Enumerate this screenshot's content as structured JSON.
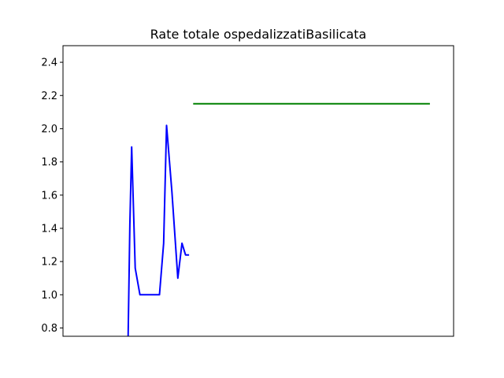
{
  "chart_data": {
    "type": "line",
    "title": "Rate totale ospedalizzatiBasilicata",
    "xlabel": "",
    "ylabel": "",
    "xlim": [
      0,
      66
    ],
    "ylim": [
      0.75,
      2.5
    ],
    "yticks": [
      "0.8",
      "1.0",
      "1.2",
      "1.4",
      "1.6",
      "1.8",
      "2.0",
      "2.2",
      "2.4"
    ],
    "xticks": [],
    "grid": false,
    "series": [
      {
        "color": "#0000ff",
        "x": [
          11,
          11.3,
          11.6,
          12.2,
          13,
          14.6,
          16.3,
          17,
          17.5,
          18.4,
          19.4,
          20.1,
          20.7,
          21.3
        ],
        "y": [
          0.75,
          1.42,
          1.89,
          1.16,
          1.0,
          1.0,
          1.0,
          1.31,
          2.02,
          1.62,
          1.1,
          1.31,
          1.24,
          1.24
        ]
      },
      {
        "color": "#008000",
        "x": [
          22,
          62
        ],
        "y": [
          2.15,
          2.15
        ]
      }
    ]
  }
}
